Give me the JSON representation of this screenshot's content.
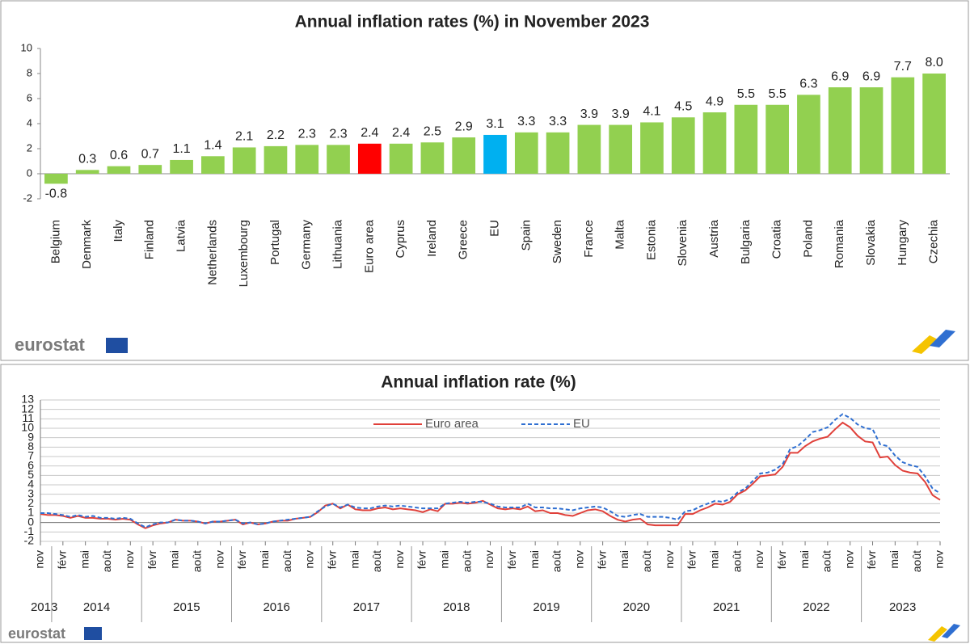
{
  "chart_data": [
    {
      "type": "bar",
      "title": "Annual inflation rates (%) in November 2023",
      "logo": "eurostat",
      "categories": [
        "Belgium",
        "Denmark",
        "Italy",
        "Finland",
        "Latvia",
        "Netherlands",
        "Luxembourg",
        "Portugal",
        "Germany",
        "Lithuania",
        "Euro area",
        "Cyprus",
        "Ireland",
        "Greece",
        "EU",
        "Spain",
        "Sweden",
        "France",
        "Malta",
        "Estonia",
        "Slovenia",
        "Austria",
        "Bulgaria",
        "Croatia",
        "Poland",
        "Romania",
        "Slovakia",
        "Hungary",
        "Czechia"
      ],
      "values": [
        -0.8,
        0.3,
        0.6,
        0.7,
        1.1,
        1.4,
        2.1,
        2.2,
        2.3,
        2.3,
        2.4,
        2.4,
        2.5,
        2.9,
        3.1,
        3.3,
        3.3,
        3.9,
        3.9,
        4.1,
        4.5,
        4.9,
        5.5,
        5.5,
        6.3,
        6.9,
        6.9,
        7.7,
        8.0
      ],
      "value_labels": [
        "-0.8",
        "0.3",
        "0.6",
        "0.7",
        "1.1",
        "1.4",
        "2.1",
        "2.2",
        "2.3",
        "2.3",
        "2.4",
        "2.4",
        "2.5",
        "2.9",
        "3.1",
        "3.3",
        "3.3",
        "3.9",
        "3.9",
        "4.1",
        "4.5",
        "4.9",
        "5.5",
        "5.5",
        "6.3",
        "6.9",
        "6.9",
        "7.7",
        "8.0"
      ],
      "colors": [
        "#92d050",
        "#92d050",
        "#92d050",
        "#92d050",
        "#92d050",
        "#92d050",
        "#92d050",
        "#92d050",
        "#92d050",
        "#92d050",
        "#ff0000",
        "#92d050",
        "#92d050",
        "#92d050",
        "#00b0f0",
        "#92d050",
        "#92d050",
        "#92d050",
        "#92d050",
        "#92d050",
        "#92d050",
        "#92d050",
        "#92d050",
        "#92d050",
        "#92d050",
        "#92d050",
        "#92d050",
        "#92d050",
        "#92d050"
      ],
      "ylim": [
        -2,
        10
      ],
      "yticks": [
        -2,
        0,
        2,
        4,
        6,
        8,
        10
      ],
      "grid": false
    },
    {
      "type": "line",
      "title": "Annual inflation rate (%)",
      "logo": "eurostat",
      "legend": "upper center",
      "grid": true,
      "x": [
        "2013-11",
        "2013-12",
        "2014-01",
        "2014-02",
        "2014-03",
        "2014-04",
        "2014-05",
        "2014-06",
        "2014-07",
        "2014-08",
        "2014-09",
        "2014-10",
        "2014-11",
        "2014-12",
        "2015-01",
        "2015-02",
        "2015-03",
        "2015-04",
        "2015-05",
        "2015-06",
        "2015-07",
        "2015-08",
        "2015-09",
        "2015-10",
        "2015-11",
        "2015-12",
        "2016-01",
        "2016-02",
        "2016-03",
        "2016-04",
        "2016-05",
        "2016-06",
        "2016-07",
        "2016-08",
        "2016-09",
        "2016-10",
        "2016-11",
        "2016-12",
        "2017-01",
        "2017-02",
        "2017-03",
        "2017-04",
        "2017-05",
        "2017-06",
        "2017-07",
        "2017-08",
        "2017-09",
        "2017-10",
        "2017-11",
        "2017-12",
        "2018-01",
        "2018-02",
        "2018-03",
        "2018-04",
        "2018-05",
        "2018-06",
        "2018-07",
        "2018-08",
        "2018-09",
        "2018-10",
        "2018-11",
        "2018-12",
        "2019-01",
        "2019-02",
        "2019-03",
        "2019-04",
        "2019-05",
        "2019-06",
        "2019-07",
        "2019-08",
        "2019-09",
        "2019-10",
        "2019-11",
        "2019-12",
        "2020-01",
        "2020-02",
        "2020-03",
        "2020-04",
        "2020-05",
        "2020-06",
        "2020-07",
        "2020-08",
        "2020-09",
        "2020-10",
        "2020-11",
        "2020-12",
        "2021-01",
        "2021-02",
        "2021-03",
        "2021-04",
        "2021-05",
        "2021-06",
        "2021-07",
        "2021-08",
        "2021-09",
        "2021-10",
        "2021-11",
        "2021-12",
        "2022-01",
        "2022-02",
        "2022-03",
        "2022-04",
        "2022-05",
        "2022-06",
        "2022-07",
        "2022-08",
        "2022-09",
        "2022-10",
        "2022-11",
        "2022-12",
        "2023-01",
        "2023-02",
        "2023-03",
        "2023-04",
        "2023-05",
        "2023-06",
        "2023-07",
        "2023-08",
        "2023-09",
        "2023-10",
        "2023-11"
      ],
      "series": [
        {
          "name": "Euro area",
          "color": "#e0403a",
          "dashed": false,
          "values": [
            0.9,
            0.8,
            0.8,
            0.7,
            0.5,
            0.7,
            0.5,
            0.5,
            0.4,
            0.4,
            0.3,
            0.4,
            0.3,
            -0.2,
            -0.6,
            -0.3,
            -0.1,
            0.0,
            0.3,
            0.2,
            0.2,
            0.1,
            -0.1,
            0.1,
            0.1,
            0.2,
            0.3,
            -0.2,
            0.0,
            -0.2,
            -0.1,
            0.1,
            0.2,
            0.2,
            0.4,
            0.5,
            0.6,
            1.1,
            1.8,
            2.0,
            1.5,
            1.9,
            1.4,
            1.3,
            1.3,
            1.5,
            1.6,
            1.4,
            1.5,
            1.4,
            1.3,
            1.1,
            1.4,
            1.2,
            2.0,
            2.0,
            2.1,
            2.0,
            2.1,
            2.3,
            1.9,
            1.5,
            1.4,
            1.5,
            1.4,
            1.7,
            1.2,
            1.3,
            1.0,
            1.0,
            0.8,
            0.7,
            1.0,
            1.3,
            1.4,
            1.2,
            0.7,
            0.3,
            0.1,
            0.3,
            0.4,
            -0.2,
            -0.3,
            -0.3,
            -0.3,
            -0.3,
            0.9,
            0.9,
            1.3,
            1.6,
            2.0,
            1.9,
            2.2,
            3.0,
            3.4,
            4.1,
            4.9,
            5.0,
            5.1,
            5.9,
            7.4,
            7.4,
            8.1,
            8.6,
            8.9,
            9.1,
            9.9,
            10.6,
            10.1,
            9.2,
            8.6,
            8.5,
            6.9,
            7.0,
            6.1,
            5.5,
            5.3,
            5.2,
            4.3,
            2.9,
            2.4
          ]
        },
        {
          "name": "EU",
          "color": "#2f6fd1",
          "dashed": true,
          "values": [
            1.0,
            1.0,
            0.9,
            0.8,
            0.6,
            0.8,
            0.6,
            0.7,
            0.5,
            0.5,
            0.4,
            0.5,
            0.4,
            -0.1,
            -0.5,
            -0.2,
            0.0,
            0.0,
            0.3,
            0.2,
            0.2,
            0.1,
            -0.1,
            0.1,
            0.1,
            0.2,
            0.3,
            -0.1,
            0.0,
            -0.2,
            -0.1,
            0.1,
            0.2,
            0.3,
            0.4,
            0.5,
            0.6,
            1.2,
            1.7,
            2.0,
            1.6,
            1.9,
            1.6,
            1.5,
            1.5,
            1.7,
            1.8,
            1.7,
            1.8,
            1.7,
            1.6,
            1.5,
            1.5,
            1.5,
            2.0,
            2.1,
            2.2,
            2.1,
            2.2,
            2.2,
            2.0,
            1.7,
            1.6,
            1.6,
            1.6,
            2.0,
            1.6,
            1.6,
            1.5,
            1.5,
            1.4,
            1.3,
            1.5,
            1.6,
            1.7,
            1.6,
            1.2,
            0.7,
            0.6,
            0.8,
            0.9,
            0.6,
            0.6,
            0.6,
            0.5,
            0.3,
            1.2,
            1.3,
            1.7,
            2.0,
            2.3,
            2.2,
            2.5,
            3.2,
            3.6,
            4.4,
            5.2,
            5.3,
            5.6,
            6.2,
            7.8,
            8.1,
            8.8,
            9.6,
            9.8,
            10.1,
            10.9,
            11.5,
            11.1,
            10.4,
            10.0,
            9.9,
            8.3,
            8.1,
            7.1,
            6.4,
            6.1,
            5.9,
            4.9,
            3.6,
            3.1
          ]
        }
      ],
      "xticks": [
        {
          "value": "2013-11",
          "label": "nov"
        },
        {
          "value": "2014-02",
          "label": "févr"
        },
        {
          "value": "2014-05",
          "label": "mai"
        },
        {
          "value": "2014-08",
          "label": "août"
        },
        {
          "value": "2014-11",
          "label": "nov"
        },
        {
          "value": "2015-02",
          "label": "févr"
        },
        {
          "value": "2015-05",
          "label": "mai"
        },
        {
          "value": "2015-08",
          "label": "août"
        },
        {
          "value": "2015-11",
          "label": "nov"
        },
        {
          "value": "2016-02",
          "label": "févr"
        },
        {
          "value": "2016-05",
          "label": "mai"
        },
        {
          "value": "2016-08",
          "label": "août"
        },
        {
          "value": "2016-11",
          "label": "nov"
        },
        {
          "value": "2017-02",
          "label": "févr"
        },
        {
          "value": "2017-05",
          "label": "mai"
        },
        {
          "value": "2017-08",
          "label": "août"
        },
        {
          "value": "2017-11",
          "label": "nov"
        },
        {
          "value": "2018-02",
          "label": "févr"
        },
        {
          "value": "2018-05",
          "label": "mai"
        },
        {
          "value": "2018-08",
          "label": "août"
        },
        {
          "value": "2018-11",
          "label": "nov"
        },
        {
          "value": "2019-02",
          "label": "févr"
        },
        {
          "value": "2019-05",
          "label": "mai"
        },
        {
          "value": "2019-08",
          "label": "août"
        },
        {
          "value": "2019-11",
          "label": "nov"
        },
        {
          "value": "2020-02",
          "label": "févr"
        },
        {
          "value": "2020-05",
          "label": "mai"
        },
        {
          "value": "2020-08",
          "label": "août"
        },
        {
          "value": "2020-11",
          "label": "nov"
        },
        {
          "value": "2021-02",
          "label": "févr"
        },
        {
          "value": "2021-05",
          "label": "mai"
        },
        {
          "value": "2021-08",
          "label": "août"
        },
        {
          "value": "2021-11",
          "label": "nov"
        },
        {
          "value": "2022-02",
          "label": "févr"
        },
        {
          "value": "2022-05",
          "label": "mai"
        },
        {
          "value": "2022-08",
          "label": "août"
        },
        {
          "value": "2022-11",
          "label": "nov"
        },
        {
          "value": "2023-02",
          "label": "févr"
        },
        {
          "value": "2023-05",
          "label": "mai"
        },
        {
          "value": "2023-08",
          "label": "août"
        },
        {
          "value": "2023-11",
          "label": "nov"
        }
      ],
      "years": [
        "2013",
        "2014",
        "2015",
        "2016",
        "2017",
        "2018",
        "2019",
        "2020",
        "2021",
        "2022",
        "2023"
      ],
      "ylim": [
        -2,
        13
      ],
      "yticks": [
        -2,
        -1,
        0,
        1,
        2,
        3,
        4,
        5,
        6,
        7,
        8,
        9,
        10,
        11,
        12,
        13
      ]
    }
  ]
}
